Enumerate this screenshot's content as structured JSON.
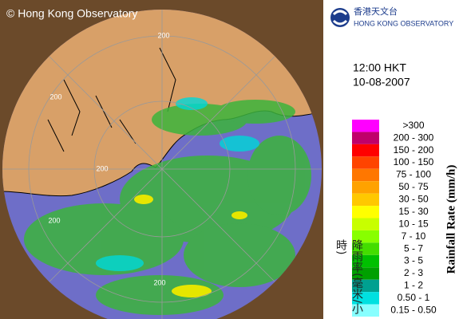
{
  "header": {
    "copyright": "© Hong Kong Observatory",
    "logo_chinese": "香港天文台",
    "logo_english": "HONG KONG OBSERVATORY"
  },
  "timestamp": {
    "time": "12:00 HKT",
    "date": "10-08-2007"
  },
  "map": {
    "range_labels": [
      "200",
      "200",
      "200",
      "200",
      "200"
    ]
  },
  "legend": {
    "title": "Rainfall Rate (mm/h)",
    "title_chinese": "降雨率(毫米/小時)",
    "items": [
      {
        "label": ">300",
        "color": "#ff00ff"
      },
      {
        "label": "200 - 300",
        "color": "#c0006a"
      },
      {
        "label": "150 - 200",
        "color": "#ff0000"
      },
      {
        "label": "100 - 150",
        "color": "#ff4400"
      },
      {
        "label": "75 - 100",
        "color": "#ff7700"
      },
      {
        "label": "50 - 75",
        "color": "#ffa200"
      },
      {
        "label": "30 - 50",
        "color": "#ffc800"
      },
      {
        "label": "15 - 30",
        "color": "#ffff00"
      },
      {
        "label": "10 - 15",
        "color": "#c8ff00"
      },
      {
        "label": "7 - 10",
        "color": "#88ff00"
      },
      {
        "label": "5 - 7",
        "color": "#44dd00"
      },
      {
        "label": "3 - 5",
        "color": "#00c000"
      },
      {
        "label": "2 - 3",
        "color": "#00a000"
      },
      {
        "label": "1 - 2",
        "color": "#00a090"
      },
      {
        "label": "0.50 - 1",
        "color": "#00e0e0"
      },
      {
        "label": "0.15 - 0.50",
        "color": "#88ffff"
      }
    ]
  }
}
